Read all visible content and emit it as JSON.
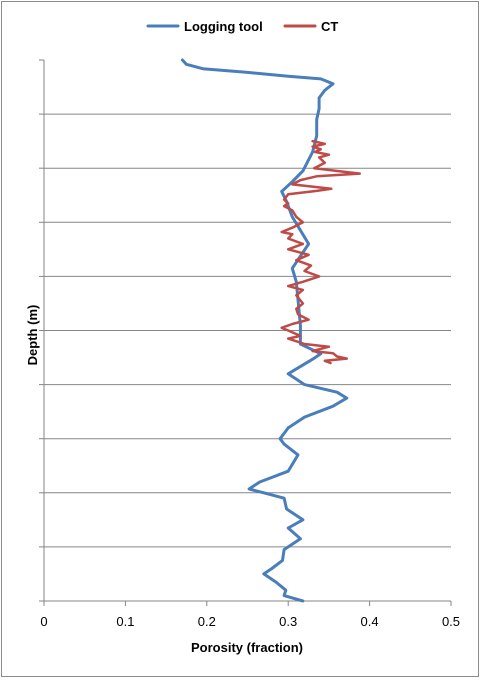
{
  "chart_data": {
    "type": "line",
    "title": "",
    "xlabel": "Porosity (fraction)",
    "ylabel": "Depth (m)",
    "xlim": [
      0,
      0.5
    ],
    "x_ticks": [
      "0",
      "0.1",
      "0.2",
      "0.3",
      "0.4",
      "0.5"
    ],
    "y_ticks_shown": false,
    "horizontal_gridlines": 10,
    "legend": "top",
    "colors": {
      "logging_tool": "#4a7ebb",
      "ct": "#be4b48"
    },
    "series": [
      {
        "name": "Logging tool",
        "y_note": "relative depth 0 (top) to 1 (bottom)",
        "points": [
          [
            0.17,
            0.0
          ],
          [
            0.175,
            0.008
          ],
          [
            0.195,
            0.016
          ],
          [
            0.25,
            0.023
          ],
          [
            0.3,
            0.03
          ],
          [
            0.34,
            0.035
          ],
          [
            0.355,
            0.044
          ],
          [
            0.345,
            0.056
          ],
          [
            0.338,
            0.07
          ],
          [
            0.338,
            0.09
          ],
          [
            0.335,
            0.11
          ],
          [
            0.335,
            0.14
          ],
          [
            0.33,
            0.17
          ],
          [
            0.318,
            0.205
          ],
          [
            0.305,
            0.225
          ],
          [
            0.292,
            0.243
          ],
          [
            0.298,
            0.262
          ],
          [
            0.305,
            0.29
          ],
          [
            0.325,
            0.34
          ],
          [
            0.305,
            0.385
          ],
          [
            0.31,
            0.41
          ],
          [
            0.315,
            0.49
          ],
          [
            0.315,
            0.525
          ],
          [
            0.34,
            0.543
          ],
          [
            0.33,
            0.553
          ],
          [
            0.3,
            0.58
          ],
          [
            0.32,
            0.6
          ],
          [
            0.36,
            0.614
          ],
          [
            0.372,
            0.625
          ],
          [
            0.355,
            0.64
          ],
          [
            0.32,
            0.66
          ],
          [
            0.3,
            0.68
          ],
          [
            0.29,
            0.7
          ],
          [
            0.295,
            0.71
          ],
          [
            0.312,
            0.73
          ],
          [
            0.3,
            0.76
          ],
          [
            0.265,
            0.78
          ],
          [
            0.252,
            0.793
          ],
          [
            0.27,
            0.8
          ],
          [
            0.295,
            0.81
          ],
          [
            0.298,
            0.83
          ],
          [
            0.318,
            0.85
          ],
          [
            0.3,
            0.865
          ],
          [
            0.315,
            0.885
          ],
          [
            0.295,
            0.905
          ],
          [
            0.293,
            0.925
          ],
          [
            0.28,
            0.94
          ],
          [
            0.27,
            0.95
          ],
          [
            0.285,
            0.965
          ],
          [
            0.297,
            0.98
          ],
          [
            0.295,
            0.99
          ],
          [
            0.318,
            1.0
          ]
        ]
      },
      {
        "name": "CT",
        "y_note": "relative depth 0 (top) to 1 (bottom)",
        "points": [
          [
            0.33,
            0.15
          ],
          [
            0.345,
            0.155
          ],
          [
            0.33,
            0.16
          ],
          [
            0.34,
            0.165
          ],
          [
            0.333,
            0.17
          ],
          [
            0.35,
            0.175
          ],
          [
            0.338,
            0.18
          ],
          [
            0.345,
            0.19
          ],
          [
            0.332,
            0.2
          ],
          [
            0.388,
            0.21
          ],
          [
            0.335,
            0.215
          ],
          [
            0.315,
            0.222
          ],
          [
            0.305,
            0.23
          ],
          [
            0.353,
            0.238
          ],
          [
            0.335,
            0.242
          ],
          [
            0.3,
            0.248
          ],
          [
            0.295,
            0.258
          ],
          [
            0.3,
            0.265
          ],
          [
            0.295,
            0.27
          ],
          [
            0.305,
            0.278
          ],
          [
            0.31,
            0.29
          ],
          [
            0.318,
            0.3
          ],
          [
            0.305,
            0.31
          ],
          [
            0.292,
            0.318
          ],
          [
            0.305,
            0.322
          ],
          [
            0.3,
            0.33
          ],
          [
            0.318,
            0.34
          ],
          [
            0.3,
            0.35
          ],
          [
            0.325,
            0.36
          ],
          [
            0.31,
            0.37
          ],
          [
            0.328,
            0.38
          ],
          [
            0.32,
            0.39
          ],
          [
            0.338,
            0.4
          ],
          [
            0.318,
            0.41
          ],
          [
            0.3,
            0.418
          ],
          [
            0.318,
            0.425
          ],
          [
            0.31,
            0.435
          ],
          [
            0.318,
            0.45
          ],
          [
            0.31,
            0.46
          ],
          [
            0.312,
            0.47
          ],
          [
            0.325,
            0.48
          ],
          [
            0.305,
            0.488
          ],
          [
            0.292,
            0.495
          ],
          [
            0.3,
            0.5
          ],
          [
            0.315,
            0.51
          ],
          [
            0.3,
            0.515
          ],
          [
            0.32,
            0.525
          ],
          [
            0.35,
            0.53
          ],
          [
            0.33,
            0.538
          ],
          [
            0.355,
            0.542
          ],
          [
            0.36,
            0.548
          ],
          [
            0.372,
            0.552
          ],
          [
            0.345,
            0.556
          ],
          [
            0.352,
            0.56
          ]
        ]
      }
    ]
  }
}
